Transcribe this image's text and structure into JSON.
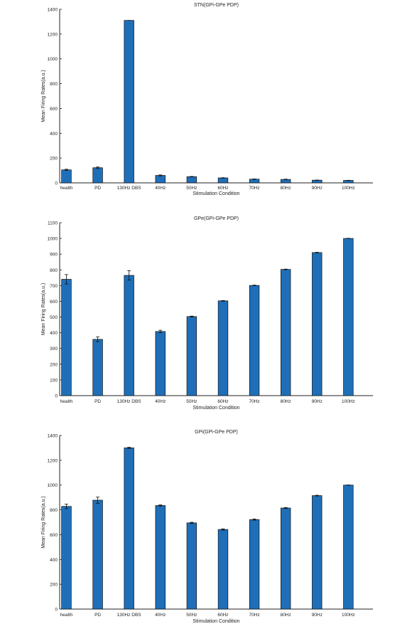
{
  "colors": {
    "bar": "#1F6FB8",
    "bar_edge": "#111111",
    "axis": "#222222",
    "errorbar": "#111111"
  },
  "chart_data": [
    {
      "type": "bar",
      "title": "STN(GPi-GPe PDP)",
      "xlabel": "Stimulation Condition",
      "ylabel": "Mean Firing Rates(a.u.)",
      "categories": [
        "health",
        "PD",
        "130Hz DBS",
        "40Hz",
        "50Hz",
        "60Hz",
        "70Hz",
        "80Hz",
        "90Hz",
        "100Hz"
      ],
      "values": [
        105,
        122,
        1310,
        60,
        50,
        40,
        30,
        28,
        22,
        20
      ],
      "errors": [
        5,
        6,
        0,
        4,
        2,
        2,
        2,
        2,
        1,
        1
      ],
      "ylim": [
        0,
        1400
      ],
      "yticks": [
        0,
        200,
        400,
        600,
        800,
        1000,
        1200,
        1400
      ],
      "grid": false
    },
    {
      "type": "bar",
      "title": "GPe(GPi-GPe PDP)",
      "xlabel": "Stimulation Condition",
      "ylabel": "Mean Firing Rates(a.u.)",
      "categories": [
        "health",
        "PD",
        "130Hz DBS",
        "40Hz",
        "50Hz",
        "60Hz",
        "70Hz",
        "80Hz",
        "90Hz",
        "100Hz"
      ],
      "values": [
        740,
        358,
        765,
        408,
        503,
        603,
        701,
        803,
        910,
        1000
      ],
      "errors": [
        30,
        15,
        30,
        8,
        3,
        2,
        2,
        2,
        2,
        1
      ],
      "ylim": [
        0,
        1100
      ],
      "yticks": [
        0,
        100,
        200,
        300,
        400,
        500,
        600,
        700,
        800,
        900,
        1000,
        1100
      ],
      "grid": false
    },
    {
      "type": "bar",
      "title": "GPi(GPi-GPe PDP)",
      "xlabel": "Stimulation Condition",
      "ylabel": "Mean Firing Rates(a.u.)",
      "categories": [
        "health",
        "PD",
        "130Hz DBS",
        "40Hz",
        "50Hz",
        "60Hz",
        "70Hz",
        "80Hz",
        "90Hz",
        "100Hz"
      ],
      "values": [
        828,
        878,
        1300,
        835,
        695,
        642,
        722,
        815,
        915,
        1000
      ],
      "errors": [
        18,
        25,
        5,
        5,
        5,
        5,
        5,
        4,
        3,
        1
      ],
      "ylim": [
        0,
        1400
      ],
      "yticks": [
        0,
        200,
        400,
        600,
        800,
        1000,
        1200,
        1400
      ],
      "grid": false
    }
  ]
}
